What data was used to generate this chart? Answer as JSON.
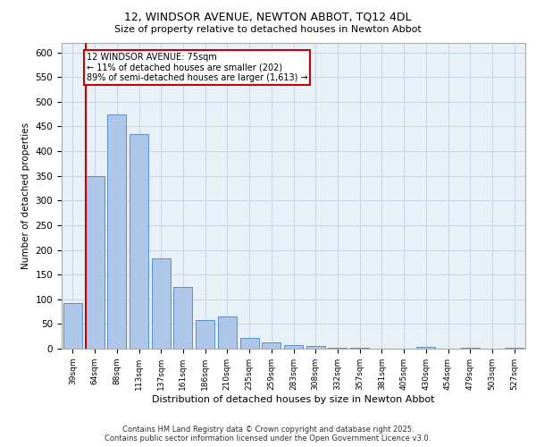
{
  "title_line1": "12, WINDSOR AVENUE, NEWTON ABBOT, TQ12 4DL",
  "title_line2": "Size of property relative to detached houses in Newton Abbot",
  "xlabel": "Distribution of detached houses by size in Newton Abbot",
  "ylabel": "Number of detached properties",
  "categories": [
    "39sqm",
    "64sqm",
    "88sqm",
    "113sqm",
    "137sqm",
    "161sqm",
    "186sqm",
    "210sqm",
    "235sqm",
    "259sqm",
    "283sqm",
    "308sqm",
    "332sqm",
    "357sqm",
    "381sqm",
    "405sqm",
    "430sqm",
    "454sqm",
    "479sqm",
    "503sqm",
    "527sqm"
  ],
  "values": [
    93,
    350,
    475,
    435,
    182,
    125,
    58,
    65,
    22,
    12,
    7,
    5,
    1,
    1,
    0,
    0,
    3,
    0,
    1,
    0,
    1
  ],
  "bar_color": "#aec6e8",
  "bar_edge_color": "#5b8fc9",
  "vline_x_index": 1,
  "vline_color": "#cc0000",
  "annotation_text": "12 WINDSOR AVENUE: 75sqm\n← 11% of detached houses are smaller (202)\n89% of semi-detached houses are larger (1,613) →",
  "annotation_box_color": "#ffffff",
  "annotation_box_edge": "#cc0000",
  "grid_color": "#c8d8e8",
  "background_color": "#e8f0f8",
  "ylim": [
    0,
    620
  ],
  "yticks": [
    0,
    50,
    100,
    150,
    200,
    250,
    300,
    350,
    400,
    450,
    500,
    550,
    600
  ],
  "footer_line1": "Contains HM Land Registry data © Crown copyright and database right 2025.",
  "footer_line2": "Contains public sector information licensed under the Open Government Licence v3.0."
}
